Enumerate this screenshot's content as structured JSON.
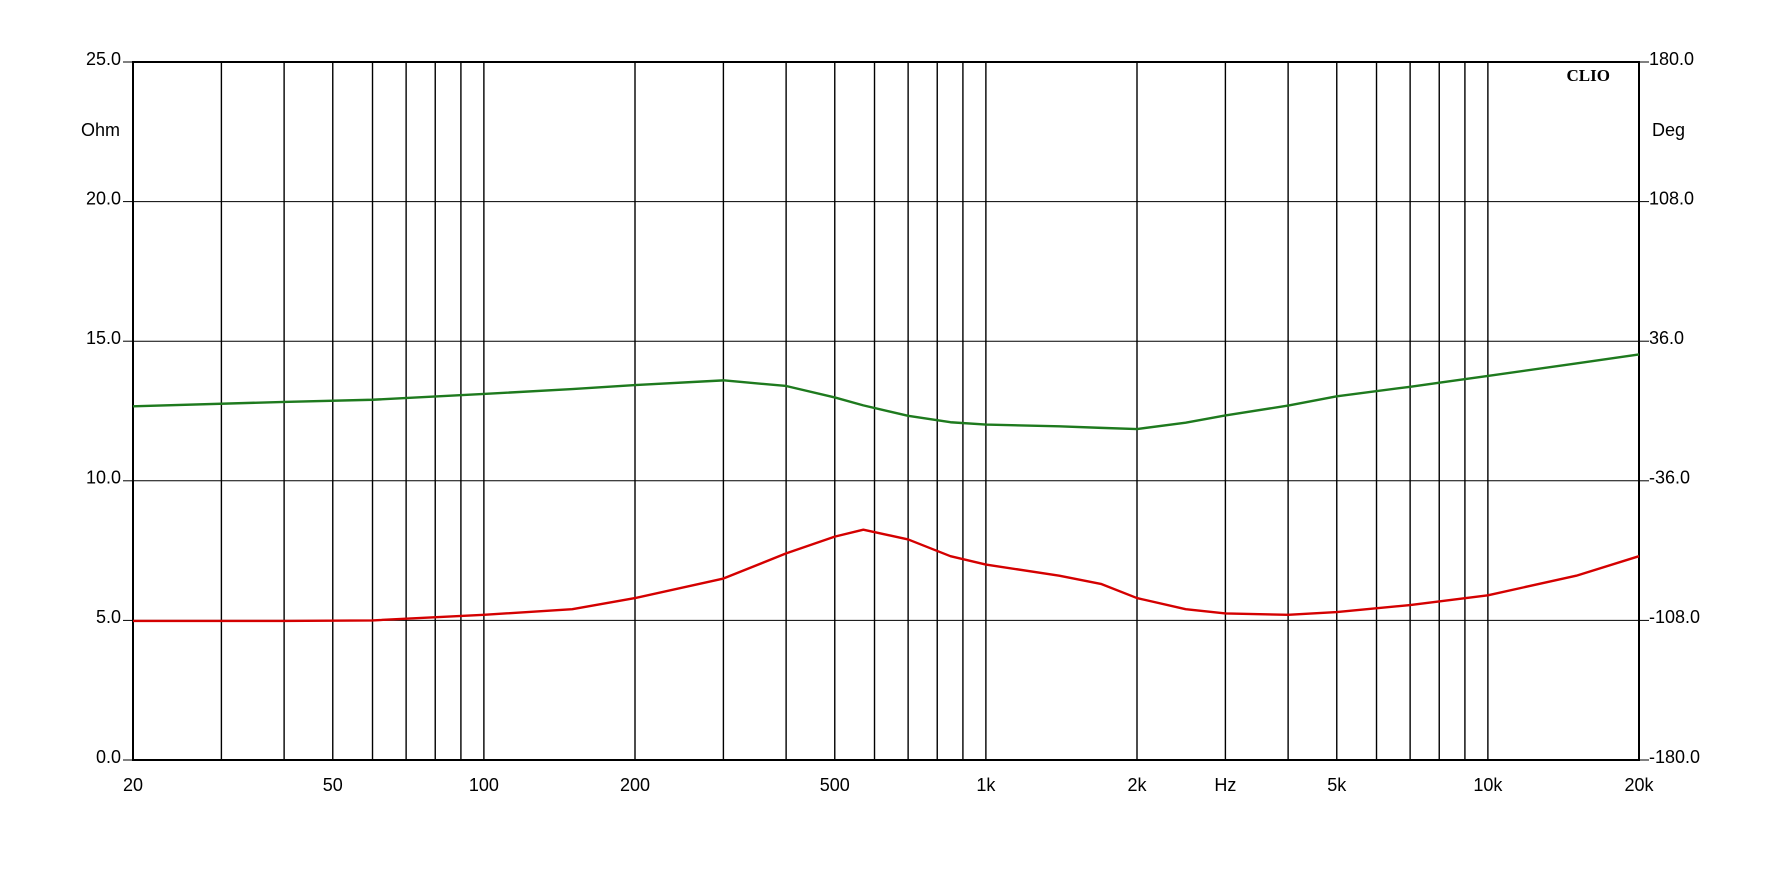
{
  "chart_data": {
    "type": "line",
    "x_label": "Hz",
    "y_label": "Ohm",
    "y2_label": "Deg",
    "annotation": "CLIO",
    "xscale": "log",
    "grid": true,
    "xlim": [
      20,
      20000
    ],
    "ylim": [
      0,
      25
    ],
    "y2lim": [
      -180,
      180
    ],
    "xticks": [
      20,
      50,
      100,
      200,
      500,
      {
        "value": 1000,
        "label": "1k"
      },
      {
        "value": 2000,
        "label": "2k"
      },
      {
        "value": 5000,
        "label": "5k"
      },
      {
        "value": 10000,
        "label": "10k"
      },
      {
        "value": 20000,
        "label": "20k"
      }
    ],
    "xgrid": [
      30,
      40,
      60,
      70,
      80,
      90,
      300,
      400,
      600,
      700,
      800,
      900,
      3000,
      4000,
      6000,
      7000,
      8000,
      9000
    ],
    "yticks": [
      {
        "value": 0,
        "label": "0.0"
      },
      {
        "value": 5,
        "label": "5.0"
      },
      {
        "value": 10,
        "label": "10.0"
      },
      {
        "value": 15,
        "label": "15.0"
      },
      {
        "value": 20,
        "label": "20.0"
      },
      {
        "value": 25,
        "label": "25.0"
      }
    ],
    "y2ticks": [
      {
        "value": -180,
        "label": "-180.0"
      },
      {
        "value": -108,
        "label": "-108.0"
      },
      {
        "value": -36,
        "label": "-36.0"
      },
      {
        "value": 36,
        "label": "36.0"
      },
      {
        "value": 108,
        "label": "108.0"
      },
      {
        "value": 180,
        "label": "180.0"
      }
    ],
    "x": [
      20,
      40,
      60,
      100,
      150,
      200,
      300,
      400,
      500,
      570,
      700,
      850,
      1000,
      1400,
      1700,
      2000,
      2500,
      3000,
      4000,
      5000,
      7000,
      10000,
      15000,
      20000
    ],
    "series": [
      {
        "color": "#d40000",
        "values": [
          4.98,
          4.98,
          5.0,
          5.2,
          5.4,
          5.8,
          6.5,
          7.4,
          8.0,
          8.25,
          7.9,
          7.3,
          7.0,
          6.6,
          6.3,
          5.8,
          5.4,
          5.25,
          5.2,
          5.3,
          5.55,
          5.9,
          6.6,
          7.3
        ]
      },
      {
        "color": "#1e7a1e",
        "axis": "y2",
        "values": [
          2.4,
          4.7,
          5.8,
          8.8,
          11.3,
          13.4,
          15.8,
          12.9,
          7.0,
          2.9,
          -2.5,
          -5.8,
          -7.0,
          -7.9,
          -8.7,
          -9.3,
          -6.0,
          -2.3,
          2.8,
          7.6,
          12.5,
          18.1,
          24.5,
          29.2
        ]
      }
    ]
  }
}
